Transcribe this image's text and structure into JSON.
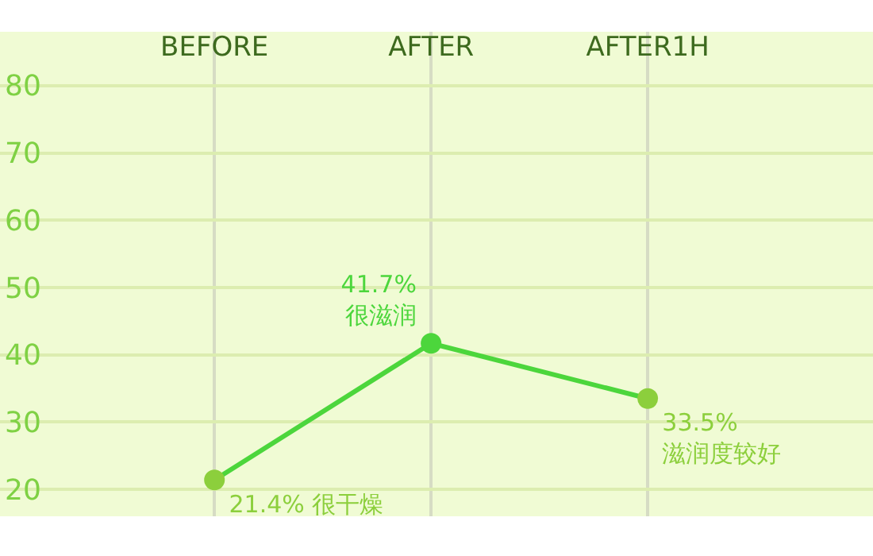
{
  "chart_data": {
    "type": "line",
    "categories": [
      "BEFORE",
      "AFTER",
      "AFTER1H"
    ],
    "series": [
      {
        "color": "#4cd63c",
        "colors": [
          "#8ccf3c",
          "#4cd63c",
          "#8ccf3c"
        ],
        "values": [
          21.4,
          41.7,
          33.5
        ],
        "value_labels": [
          "21.4% 很干燥",
          "41.7%\n很滋润",
          "33.5%\n滋润度较好"
        ]
      }
    ],
    "ylim": [
      16,
      88
    ],
    "yticks": [
      20,
      30,
      40,
      50,
      60,
      70,
      80
    ],
    "grid": true,
    "marker": "circle",
    "line_style": "solid"
  }
}
